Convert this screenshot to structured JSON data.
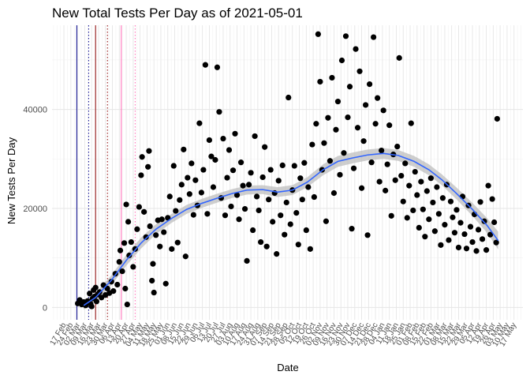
{
  "chart_data": {
    "type": "scatter",
    "title": "New Total Tests Per Day as of 2021-05-01",
    "xlabel": "Date",
    "ylabel": "New Tests Per Day",
    "x_range": [
      "2020-02-05",
      "2021-05-26"
    ],
    "ylim": [
      -2500,
      57000
    ],
    "y_ticks": [
      0,
      20000,
      40000
    ],
    "y_tick_labels": [
      "0",
      "20000",
      "40000"
    ],
    "x_tick_labels": [
      "17 Feb",
      "24 Feb",
      "02 Mar",
      "09 Mar",
      "16 Mar",
      "23 Mar",
      "30 Mar",
      "06 Apr",
      "13 Apr",
      "20 Apr",
      "27 Apr",
      "04 May",
      "11 May",
      "18 May",
      "25 May",
      "01 Jun",
      "08 Jun",
      "15 Jun",
      "22 Jun",
      "29 Jun",
      "06 Jul",
      "13 Jul",
      "20 Jul",
      "27 Jul",
      "03 Aug",
      "10 Aug",
      "17 Aug",
      "24 Aug",
      "31 Aug",
      "07 Sep",
      "14 Sep",
      "21 Sep",
      "28 Sep",
      "05 Oct",
      "12 Oct",
      "19 Oct",
      "26 Oct",
      "02 Nov",
      "09 Nov",
      "16 Nov",
      "23 Nov",
      "30 Nov",
      "07 Dec",
      "14 Dec",
      "21 Dec",
      "28 Dec",
      "04 Jan",
      "11 Jan",
      "18 Jan",
      "25 Jan",
      "01 Feb",
      "08 Feb",
      "15 Feb",
      "22 Feb",
      "01 Mar",
      "08 Mar",
      "15 Mar",
      "22 Mar",
      "29 Mar",
      "05 Apr",
      "12 Apr",
      "19 Apr",
      "26 Apr",
      "03 May",
      "10 May",
      "17 May"
    ],
    "x_tick_start": "2020-02-17",
    "grid": true,
    "legend": "none",
    "vlines": [
      {
        "date": "2020-03-01",
        "color": "#00008b",
        "style": "solid"
      },
      {
        "date": "2020-03-13",
        "color": "#00008b",
        "style": "dotted"
      },
      {
        "date": "2020-03-20",
        "color": "#8b0000",
        "style": "solid"
      },
      {
        "date": "2020-04-01",
        "color": "#8b0000",
        "style": "dotted"
      },
      {
        "date": "2020-04-15",
        "color": "#ff69b4",
        "style": "solid"
      },
      {
        "date": "2020-04-29",
        "color": "#ff69b4",
        "style": "dotted"
      }
    ],
    "smooth": [
      {
        "x": "2020-03-08",
        "y": 400
      },
      {
        "x": "2020-03-20",
        "y": 2000
      },
      {
        "x": "2020-04-05",
        "y": 5500
      },
      {
        "x": "2020-04-20",
        "y": 9500
      },
      {
        "x": "2020-05-05",
        "y": 13000
      },
      {
        "x": "2020-05-20",
        "y": 15800
      },
      {
        "x": "2020-06-05",
        "y": 18000
      },
      {
        "x": "2020-06-20",
        "y": 19800
      },
      {
        "x": "2020-07-05",
        "y": 21000
      },
      {
        "x": "2020-07-20",
        "y": 22000
      },
      {
        "x": "2020-08-05",
        "y": 23000
      },
      {
        "x": "2020-08-20",
        "y": 23700
      },
      {
        "x": "2020-09-05",
        "y": 23800
      },
      {
        "x": "2020-09-20",
        "y": 23300
      },
      {
        "x": "2020-10-05",
        "y": 23700
      },
      {
        "x": "2020-10-20",
        "y": 25300
      },
      {
        "x": "2020-11-05",
        "y": 27800
      },
      {
        "x": "2020-11-20",
        "y": 29500
      },
      {
        "x": "2020-12-05",
        "y": 30200
      },
      {
        "x": "2020-12-20",
        "y": 30800
      },
      {
        "x": "2021-01-05",
        "y": 31100
      },
      {
        "x": "2021-01-20",
        "y": 30700
      },
      {
        "x": "2021-02-05",
        "y": 29500
      },
      {
        "x": "2021-02-20",
        "y": 27800
      },
      {
        "x": "2021-03-05",
        "y": 25800
      },
      {
        "x": "2021-03-20",
        "y": 23000
      },
      {
        "x": "2021-04-05",
        "y": 19800
      },
      {
        "x": "2021-04-20",
        "y": 16500
      },
      {
        "x": "2021-05-01",
        "y": 13500
      }
    ],
    "smooth_band": [
      800,
      900,
      1000,
      1100,
      1100,
      1000,
      900,
      900,
      900,
      900,
      900,
      900,
      900,
      1000,
      1000,
      1000,
      1100,
      1100,
      1100,
      1100,
      1100,
      1100,
      1100,
      1100,
      1100,
      1200,
      1300,
      1500,
      1800
    ],
    "points": [
      {
        "x": "2020-03-02",
        "y": 800
      },
      {
        "x": "2020-03-04",
        "y": 1500
      },
      {
        "x": "2020-03-06",
        "y": 600
      },
      {
        "x": "2020-03-08",
        "y": 1100
      },
      {
        "x": "2020-03-10",
        "y": 400
      },
      {
        "x": "2020-03-12",
        "y": 1300
      },
      {
        "x": "2020-03-14",
        "y": 2800
      },
      {
        "x": "2020-03-15",
        "y": 700
      },
      {
        "x": "2020-03-16",
        "y": 200
      },
      {
        "x": "2020-03-17",
        "y": 1800
      },
      {
        "x": "2020-03-18",
        "y": 3500
      },
      {
        "x": "2020-03-19",
        "y": 2200
      },
      {
        "x": "2020-03-20",
        "y": 4000
      },
      {
        "x": "2020-03-21",
        "y": 1200
      },
      {
        "x": "2020-03-22",
        "y": 2600
      },
      {
        "x": "2020-03-24",
        "y": 3100
      },
      {
        "x": "2020-03-26",
        "y": 2000
      },
      {
        "x": "2020-03-28",
        "y": 4500
      },
      {
        "x": "2020-03-30",
        "y": 2500
      },
      {
        "x": "2020-04-01",
        "y": 3800
      },
      {
        "x": "2020-04-03",
        "y": 2900
      },
      {
        "x": "2020-04-05",
        "y": 5200
      },
      {
        "x": "2020-04-07",
        "y": 3300
      },
      {
        "x": "2020-04-09",
        "y": 6800
      },
      {
        "x": "2020-04-11",
        "y": 4600
      },
      {
        "x": "2020-04-13",
        "y": 9200
      },
      {
        "x": "2020-04-14",
        "y": 11500
      },
      {
        "x": "2020-04-16",
        "y": 7300
      },
      {
        "x": "2020-04-18",
        "y": 13000
      },
      {
        "x": "2020-04-19",
        "y": 3800
      },
      {
        "x": "2020-04-20",
        "y": 20800
      },
      {
        "x": "2020-04-21",
        "y": 600
      },
      {
        "x": "2020-04-22",
        "y": 17300
      },
      {
        "x": "2020-04-23",
        "y": 10500
      },
      {
        "x": "2020-04-25",
        "y": 13200
      },
      {
        "x": "2020-04-27",
        "y": 8200
      },
      {
        "x": "2020-04-29",
        "y": 11800
      },
      {
        "x": "2020-05-01",
        "y": 15800
      },
      {
        "x": "2020-05-03",
        "y": 20300
      },
      {
        "x": "2020-05-05",
        "y": 26700
      },
      {
        "x": "2020-05-06",
        "y": 30400
      },
      {
        "x": "2020-05-08",
        "y": 19300
      },
      {
        "x": "2020-05-10",
        "y": 14200
      },
      {
        "x": "2020-05-12",
        "y": 28400
      },
      {
        "x": "2020-05-13",
        "y": 31600
      },
      {
        "x": "2020-05-14",
        "y": 16400
      },
      {
        "x": "2020-05-16",
        "y": 5400
      },
      {
        "x": "2020-05-17",
        "y": 8800
      },
      {
        "x": "2020-05-18",
        "y": 3000
      },
      {
        "x": "2020-05-20",
        "y": 14600
      },
      {
        "x": "2020-05-22",
        "y": 17600
      },
      {
        "x": "2020-05-24",
        "y": 12300
      },
      {
        "x": "2020-05-26",
        "y": 17800
      },
      {
        "x": "2020-05-28",
        "y": 15200
      },
      {
        "x": "2020-05-30",
        "y": 4800
      },
      {
        "x": "2020-06-01",
        "y": 18100
      },
      {
        "x": "2020-06-03",
        "y": 22400
      },
      {
        "x": "2020-06-05",
        "y": 11800
      },
      {
        "x": "2020-06-07",
        "y": 28600
      },
      {
        "x": "2020-06-09",
        "y": 19500
      },
      {
        "x": "2020-06-11",
        "y": 13100
      },
      {
        "x": "2020-06-13",
        "y": 21700
      },
      {
        "x": "2020-06-15",
        "y": 24800
      },
      {
        "x": "2020-06-17",
        "y": 31900
      },
      {
        "x": "2020-06-19",
        "y": 10300
      },
      {
        "x": "2020-06-21",
        "y": 26200
      },
      {
        "x": "2020-06-23",
        "y": 22900
      },
      {
        "x": "2020-06-25",
        "y": 29100
      },
      {
        "x": "2020-06-27",
        "y": 18700
      },
      {
        "x": "2020-06-29",
        "y": 25700
      },
      {
        "x": "2020-07-01",
        "y": 20600
      },
      {
        "x": "2020-07-03",
        "y": 37200
      },
      {
        "x": "2020-07-05",
        "y": 23200
      },
      {
        "x": "2020-07-07",
        "y": 27800
      },
      {
        "x": "2020-07-09",
        "y": 49000
      },
      {
        "x": "2020-07-11",
        "y": 18900
      },
      {
        "x": "2020-07-13",
        "y": 33800
      },
      {
        "x": "2020-07-15",
        "y": 30500
      },
      {
        "x": "2020-07-17",
        "y": 24300
      },
      {
        "x": "2020-07-19",
        "y": 29800
      },
      {
        "x": "2020-07-21",
        "y": 48500
      },
      {
        "x": "2020-07-23",
        "y": 39500
      },
      {
        "x": "2020-07-25",
        "y": 22100
      },
      {
        "x": "2020-07-27",
        "y": 34100
      },
      {
        "x": "2020-07-29",
        "y": 18600
      },
      {
        "x": "2020-07-31",
        "y": 26200
      },
      {
        "x": "2020-08-02",
        "y": 31800
      },
      {
        "x": "2020-08-04",
        "y": 20400
      },
      {
        "x": "2020-08-06",
        "y": 27700
      },
      {
        "x": "2020-08-08",
        "y": 35100
      },
      {
        "x": "2020-08-10",
        "y": 22700
      },
      {
        "x": "2020-08-12",
        "y": 17800
      },
      {
        "x": "2020-08-14",
        "y": 29300
      },
      {
        "x": "2020-08-16",
        "y": 24600
      },
      {
        "x": "2020-08-18",
        "y": 19900
      },
      {
        "x": "2020-08-20",
        "y": 9400
      },
      {
        "x": "2020-08-22",
        "y": 24800
      },
      {
        "x": "2020-08-24",
        "y": 27200
      },
      {
        "x": "2020-08-26",
        "y": 15600
      },
      {
        "x": "2020-08-28",
        "y": 34600
      },
      {
        "x": "2020-08-30",
        "y": 22400
      },
      {
        "x": "2020-09-01",
        "y": 19600
      },
      {
        "x": "2020-09-03",
        "y": 13200
      },
      {
        "x": "2020-09-05",
        "y": 26300
      },
      {
        "x": "2020-09-07",
        "y": 32400
      },
      {
        "x": "2020-09-09",
        "y": 12300
      },
      {
        "x": "2020-09-11",
        "y": 21800
      },
      {
        "x": "2020-09-13",
        "y": 27800
      },
      {
        "x": "2020-09-15",
        "y": 17300
      },
      {
        "x": "2020-09-17",
        "y": 23100
      },
      {
        "x": "2020-09-19",
        "y": 10800
      },
      {
        "x": "2020-09-21",
        "y": 25600
      },
      {
        "x": "2020-09-23",
        "y": 18600
      },
      {
        "x": "2020-09-25",
        "y": 28700
      },
      {
        "x": "2020-09-27",
        "y": 14700
      },
      {
        "x": "2020-09-29",
        "y": 21200
      },
      {
        "x": "2020-10-01",
        "y": 42400
      },
      {
        "x": "2020-10-03",
        "y": 16800
      },
      {
        "x": "2020-10-05",
        "y": 23700
      },
      {
        "x": "2020-10-07",
        "y": 28600
      },
      {
        "x": "2020-10-09",
        "y": 19100
      },
      {
        "x": "2020-10-11",
        "y": 12700
      },
      {
        "x": "2020-10-13",
        "y": 26100
      },
      {
        "x": "2020-10-15",
        "y": 21800
      },
      {
        "x": "2020-10-17",
        "y": 29200
      },
      {
        "x": "2020-10-19",
        "y": 15600
      },
      {
        "x": "2020-10-21",
        "y": 24300
      },
      {
        "x": "2020-10-23",
        "y": 11800
      },
      {
        "x": "2020-10-25",
        "y": 32900
      },
      {
        "x": "2020-10-27",
        "y": 22300
      },
      {
        "x": "2020-10-29",
        "y": 37100
      },
      {
        "x": "2020-10-31",
        "y": 55200
      },
      {
        "x": "2020-11-02",
        "y": 45600
      },
      {
        "x": "2020-11-04",
        "y": 27800
      },
      {
        "x": "2020-11-06",
        "y": 33200
      },
      {
        "x": "2020-11-08",
        "y": 17400
      },
      {
        "x": "2020-11-10",
        "y": 38300
      },
      {
        "x": "2020-11-12",
        "y": 29600
      },
      {
        "x": "2020-11-14",
        "y": 46400
      },
      {
        "x": "2020-11-16",
        "y": 23100
      },
      {
        "x": "2020-11-18",
        "y": 35900
      },
      {
        "x": "2020-11-20",
        "y": 41600
      },
      {
        "x": "2020-11-22",
        "y": 26800
      },
      {
        "x": "2020-11-24",
        "y": 49900
      },
      {
        "x": "2020-11-26",
        "y": 31200
      },
      {
        "x": "2020-11-28",
        "y": 54800
      },
      {
        "x": "2020-11-30",
        "y": 38400
      },
      {
        "x": "2020-12-02",
        "y": 44600
      },
      {
        "x": "2020-12-04",
        "y": 15900
      },
      {
        "x": "2020-12-06",
        "y": 28100
      },
      {
        "x": "2020-12-08",
        "y": 52200
      },
      {
        "x": "2020-12-10",
        "y": 36300
      },
      {
        "x": "2020-12-12",
        "y": 47700
      },
      {
        "x": "2020-12-14",
        "y": 24100
      },
      {
        "x": "2020-12-16",
        "y": 33600
      },
      {
        "x": "2020-12-18",
        "y": 40900
      },
      {
        "x": "2020-12-20",
        "y": 14600
      },
      {
        "x": "2020-12-22",
        "y": 45100
      },
      {
        "x": "2020-12-24",
        "y": 29300
      },
      {
        "x": "2020-12-26",
        "y": 54600
      },
      {
        "x": "2020-12-28",
        "y": 37100
      },
      {
        "x": "2020-12-30",
        "y": 42300
      },
      {
        "x": "2021-01-01",
        "y": 25400
      },
      {
        "x": "2021-01-03",
        "y": 31700
      },
      {
        "x": "2021-01-05",
        "y": 39800
      },
      {
        "x": "2021-01-07",
        "y": 23600
      },
      {
        "x": "2021-01-09",
        "y": 28900
      },
      {
        "x": "2021-01-11",
        "y": 36800
      },
      {
        "x": "2021-01-13",
        "y": 18500
      },
      {
        "x": "2021-01-15",
        "y": 30900
      },
      {
        "x": "2021-01-17",
        "y": 25700
      },
      {
        "x": "2021-01-19",
        "y": 32500
      },
      {
        "x": "2021-01-21",
        "y": 50400
      },
      {
        "x": "2021-01-23",
        "y": 26600
      },
      {
        "x": "2021-01-25",
        "y": 21400
      },
      {
        "x": "2021-01-27",
        "y": 29100
      },
      {
        "x": "2021-01-29",
        "y": 18100
      },
      {
        "x": "2021-01-31",
        "y": 24600
      },
      {
        "x": "2021-02-02",
        "y": 37200
      },
      {
        "x": "2021-02-04",
        "y": 19600
      },
      {
        "x": "2021-02-06",
        "y": 27400
      },
      {
        "x": "2021-02-08",
        "y": 22700
      },
      {
        "x": "2021-02-10",
        "y": 16100
      },
      {
        "x": "2021-02-12",
        "y": 25400
      },
      {
        "x": "2021-02-14",
        "y": 19800
      },
      {
        "x": "2021-02-16",
        "y": 14300
      },
      {
        "x": "2021-02-18",
        "y": 23500
      },
      {
        "x": "2021-02-20",
        "y": 17800
      },
      {
        "x": "2021-02-22",
        "y": 26100
      },
      {
        "x": "2021-02-24",
        "y": 21200
      },
      {
        "x": "2021-02-26",
        "y": 15400
      },
      {
        "x": "2021-02-28",
        "y": 24300
      },
      {
        "x": "2021-03-02",
        "y": 18900
      },
      {
        "x": "2021-03-04",
        "y": 12600
      },
      {
        "x": "2021-03-06",
        "y": 22100
      },
      {
        "x": "2021-03-08",
        "y": 16700
      },
      {
        "x": "2021-03-10",
        "y": 24800
      },
      {
        "x": "2021-03-12",
        "y": 13600
      },
      {
        "x": "2021-03-14",
        "y": 21400
      },
      {
        "x": "2021-03-16",
        "y": 18200
      },
      {
        "x": "2021-03-18",
        "y": 15100
      },
      {
        "x": "2021-03-20",
        "y": 19700
      },
      {
        "x": "2021-03-22",
        "y": 12100
      },
      {
        "x": "2021-03-24",
        "y": 17100
      },
      {
        "x": "2021-03-26",
        "y": 22400
      },
      {
        "x": "2021-03-28",
        "y": 14800
      },
      {
        "x": "2021-03-30",
        "y": 11900
      },
      {
        "x": "2021-04-01",
        "y": 20600
      },
      {
        "x": "2021-04-03",
        "y": 16300
      },
      {
        "x": "2021-04-05",
        "y": 13200
      },
      {
        "x": "2021-04-07",
        "y": 18800
      },
      {
        "x": "2021-04-09",
        "y": 11400
      },
      {
        "x": "2021-04-11",
        "y": 15700
      },
      {
        "x": "2021-04-13",
        "y": 21300
      },
      {
        "x": "2021-04-15",
        "y": 13800
      },
      {
        "x": "2021-04-17",
        "y": 17400
      },
      {
        "x": "2021-04-19",
        "y": 11600
      },
      {
        "x": "2021-04-21",
        "y": 24600
      },
      {
        "x": "2021-04-23",
        "y": 14700
      },
      {
        "x": "2021-04-25",
        "y": 21900
      },
      {
        "x": "2021-04-27",
        "y": 17200
      },
      {
        "x": "2021-04-29",
        "y": 13100
      },
      {
        "x": "2021-04-30",
        "y": 38100
      }
    ]
  }
}
